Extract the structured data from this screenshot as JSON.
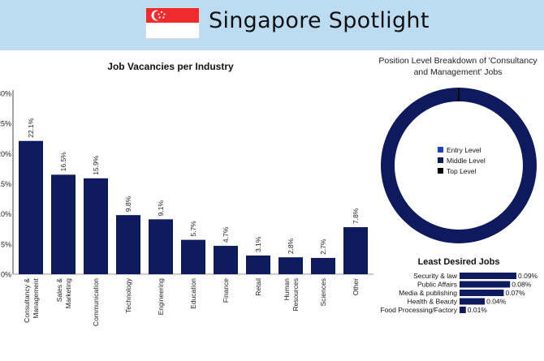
{
  "header": {
    "title": "Singapore Spotlight",
    "flag_colors": {
      "top": "#ef2b2d",
      "bottom": "#ffffff",
      "emblem": "#ffffff"
    },
    "background": "#bcdcf2"
  },
  "chart_data": [
    {
      "type": "bar",
      "title": "Job Vacancies per Industry",
      "categories": [
        "Consultancy & Management",
        "Sales & Marketing",
        "Communication",
        "Technology",
        "Engineering",
        "Education",
        "Finance",
        "Retail",
        "Human Resources",
        "Sciences",
        "Other"
      ],
      "category_labels": [
        [
          "Consultancy &",
          "Management"
        ],
        [
          "Sales &",
          "Marketing"
        ],
        [
          "Communication"
        ],
        [
          "Technology"
        ],
        [
          "Engineering"
        ],
        [
          "Education"
        ],
        [
          "Finance"
        ],
        [
          "Retail"
        ],
        [
          "Human",
          "Resources"
        ],
        [
          "Sciences"
        ],
        [
          "Other"
        ]
      ],
      "values": [
        22.1,
        16.5,
        15.9,
        9.8,
        9.1,
        5.7,
        4.7,
        3.1,
        2.8,
        2.7,
        7.8
      ],
      "data_labels": [
        "22.1%",
        "16.5%",
        "15.9%",
        "9.8%",
        "9.1%",
        "5.7%",
        "4.7%",
        "3.1%",
        "2.8%",
        "2.7%",
        "7.8%"
      ],
      "yticks": [
        0,
        5,
        10,
        15,
        20,
        25,
        30
      ],
      "ytick_labels": [
        "0%",
        "5%",
        "10%",
        "15%",
        "20%",
        "25%",
        "30%"
      ],
      "ylim": [
        0,
        30
      ],
      "xlabel": "",
      "ylabel": "",
      "color": "#0d1b5e",
      "grid": false
    },
    {
      "type": "pie",
      "subtype": "donut",
      "title": "Position Level Breakdown of 'Consultancy and Management' Jobs",
      "categories": [
        "Entry Level",
        "Middle Level",
        "Top Level"
      ],
      "values": [
        0,
        99.7,
        0.3
      ],
      "colors": [
        "#1f3fbf",
        "#0d1b5e",
        "#000000"
      ],
      "legend": "center"
    },
    {
      "type": "bar",
      "orientation": "horizontal",
      "title": "Least Desired Jobs",
      "categories": [
        "Security & law",
        "Public Affairs",
        "Media & publishing",
        "Health & Beauty",
        "Food Processing/Factory"
      ],
      "values": [
        0.09,
        0.08,
        0.07,
        0.04,
        0.01
      ],
      "data_labels": [
        "0.09%",
        "0.08%",
        "0.07%",
        "0.04%",
        "0.01%"
      ],
      "xlim": [
        0,
        0.09
      ],
      "color": "#0d1b5e"
    }
  ]
}
